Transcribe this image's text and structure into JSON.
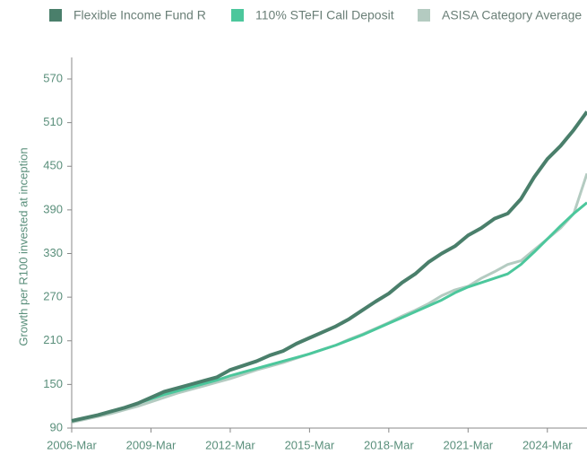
{
  "chart_data": {
    "type": "line",
    "y_label": "Growth per R100 invested at inception",
    "x": [
      "2006-Mar",
      "2006-Sep",
      "2007-Mar",
      "2007-Sep",
      "2008-Mar",
      "2008-Sep",
      "2009-Mar",
      "2009-Sep",
      "2010-Mar",
      "2010-Sep",
      "2011-Mar",
      "2011-Sep",
      "2012-Mar",
      "2012-Sep",
      "2013-Mar",
      "2013-Sep",
      "2014-Mar",
      "2014-Sep",
      "2015-Mar",
      "2015-Sep",
      "2016-Mar",
      "2016-Sep",
      "2017-Mar",
      "2017-Sep",
      "2018-Mar",
      "2018-Sep",
      "2019-Mar",
      "2019-Sep",
      "2020-Mar",
      "2020-Sep",
      "2021-Mar",
      "2021-Sep",
      "2022-Mar",
      "2022-Sep",
      "2023-Mar",
      "2023-Sep",
      "2024-Mar",
      "2024-Sep",
      "2025-Mar",
      "2025-Sep"
    ],
    "series": [
      {
        "name": "Flexible Income Fund R",
        "color": "#4a7f6b",
        "values": [
          100,
          104,
          108,
          113,
          118,
          124,
          132,
          140,
          145,
          150,
          155,
          160,
          170,
          176,
          182,
          190,
          196,
          206,
          214,
          222,
          230,
          240,
          252,
          264,
          275,
          290,
          302,
          318,
          330,
          340,
          355,
          365,
          378,
          385,
          405,
          435,
          460,
          478,
          500,
          525
        ]
      },
      {
        "name": "110% STeFI Call Deposit",
        "color": "#4cc79c",
        "values": [
          100,
          104,
          108,
          113,
          118,
          124,
          130,
          136,
          141,
          146,
          151,
          156,
          162,
          167,
          172,
          177,
          182,
          187,
          192,
          198,
          204,
          211,
          218,
          226,
          234,
          242,
          250,
          258,
          266,
          276,
          284,
          290,
          296,
          302,
          315,
          332,
          350,
          368,
          385,
          400
        ]
      },
      {
        "name": "ASISA Category Average",
        "color": "#b4cbc1",
        "values": [
          98,
          102,
          106,
          110,
          115,
          120,
          126,
          132,
          138,
          143,
          148,
          153,
          158,
          164,
          170,
          175,
          180,
          186,
          192,
          198,
          204,
          212,
          219,
          227,
          235,
          244,
          252,
          261,
          272,
          280,
          285,
          296,
          305,
          315,
          320,
          335,
          350,
          365,
          385,
          440
        ]
      }
    ],
    "ylim": [
      90,
      600
    ],
    "yticks": [
      90,
      150,
      210,
      270,
      330,
      390,
      450,
      510,
      570
    ],
    "xticks": [
      "2006-Mar",
      "2009-Mar",
      "2012-Mar",
      "2015-Mar",
      "2018-Mar",
      "2021-Mar",
      "2024-Mar"
    ]
  }
}
